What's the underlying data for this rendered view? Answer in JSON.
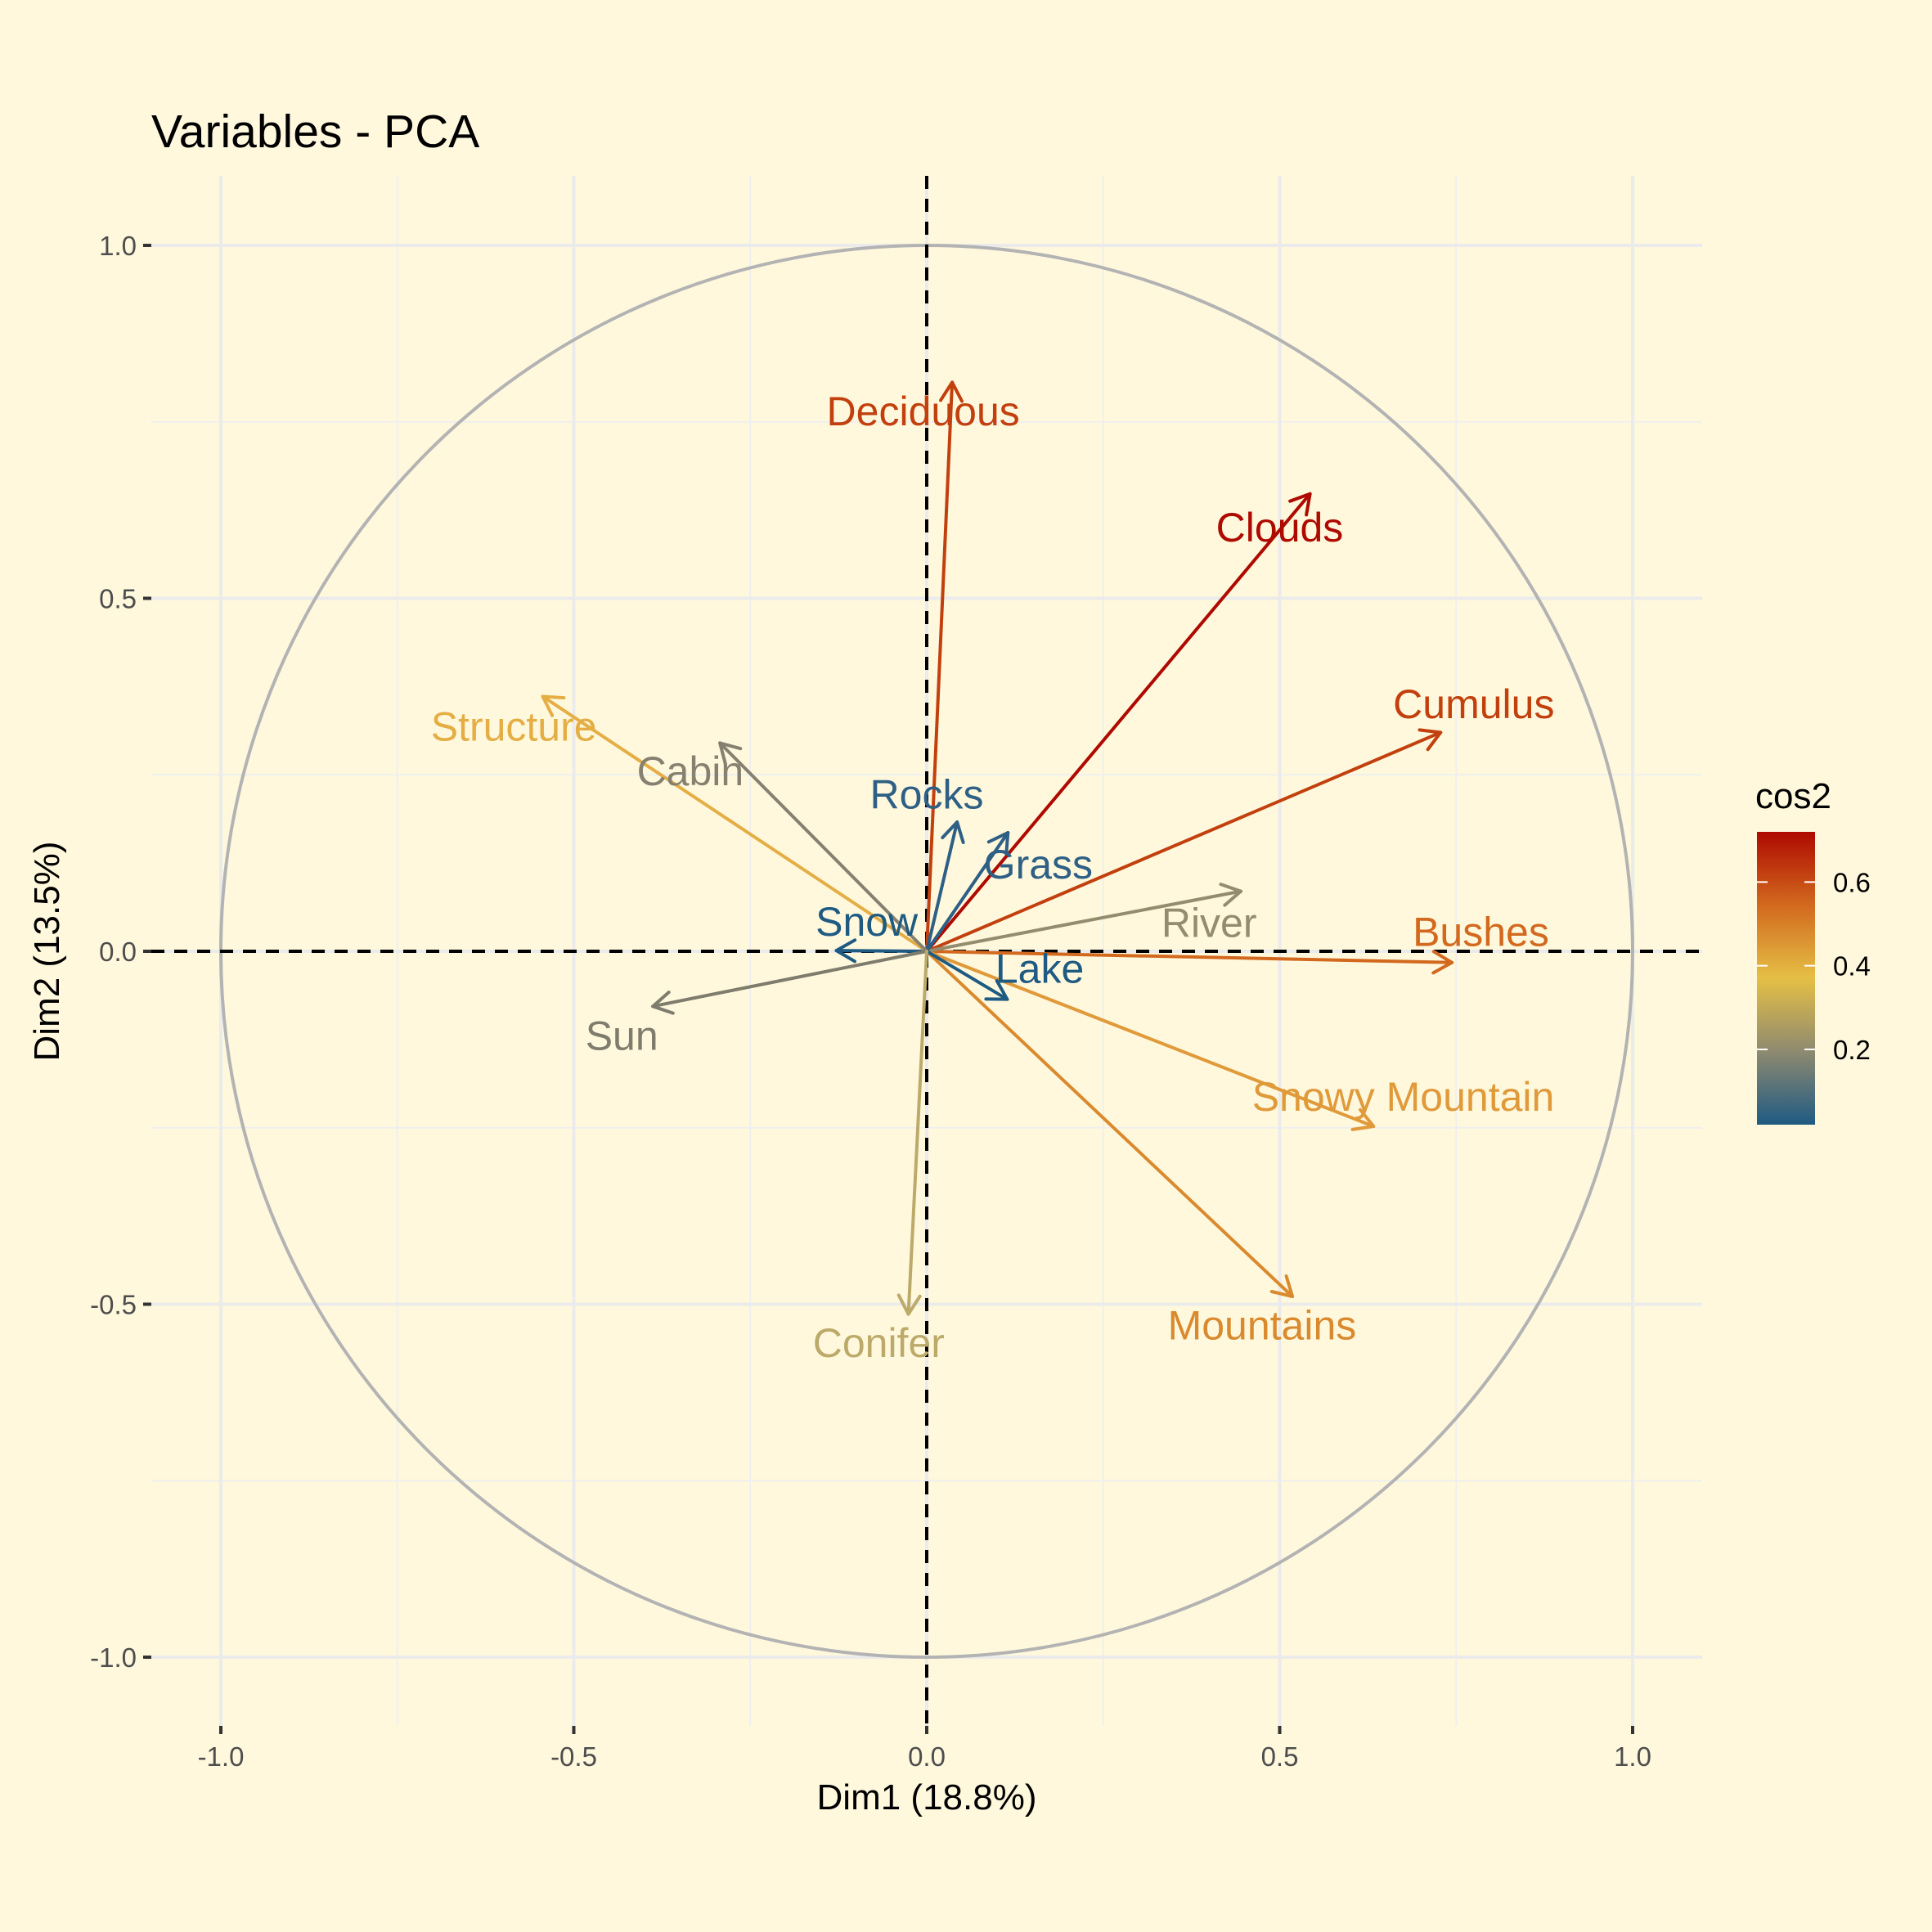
{
  "chart_data": {
    "type": "scatter",
    "subtype": "pca-variable-correlation-circle",
    "title": "Variables - PCA",
    "xlabel": "Dim1 (18.8%)",
    "ylabel": "Dim2 (13.5%)",
    "xlim": [
      -1.1,
      1.1
    ],
    "ylim": [
      -1.1,
      1.1
    ],
    "xticks": [
      -1.0,
      -0.5,
      0.0,
      0.5,
      1.0
    ],
    "xtick_labels": [
      "-1.0",
      "-0.5",
      "0.0",
      "0.5",
      "1.0"
    ],
    "yticks": [
      -1.0,
      -0.5,
      0.0,
      0.5,
      1.0
    ],
    "ytick_labels": [
      "-1.0",
      "-0.5",
      "0.0",
      "0.5",
      "1.0"
    ],
    "grid": true,
    "unit_circle": true,
    "reference_lines": "dashed at x=0 and y=0",
    "legend": {
      "title": "cos2",
      "placement": "right",
      "type": "gradient",
      "range": [
        0.02,
        0.72
      ],
      "ticks": [
        0.2,
        0.4,
        0.6
      ],
      "tick_labels": [
        "0.2",
        "0.4",
        "0.6"
      ],
      "colors": [
        "#1F5A82",
        "#8E8A70",
        "#E5BF45",
        "#D2691E",
        "#AE0A00"
      ]
    },
    "variables": [
      {
        "name": "Deciduous",
        "x": 0.036,
        "y": 0.806,
        "label_x": -0.005,
        "label_y": 0.765,
        "color": "#C2400E"
      },
      {
        "name": "Clouds",
        "x": 0.543,
        "y": 0.648,
        "label_x": 0.5,
        "label_y": 0.6,
        "color": "#AE0A00"
      },
      {
        "name": "Cumulus",
        "x": 0.728,
        "y": 0.31,
        "label_x": 0.775,
        "label_y": 0.35,
        "color": "#C2400E"
      },
      {
        "name": "Bushes",
        "x": 0.744,
        "y": -0.016,
        "label_x": 0.785,
        "label_y": 0.027,
        "color": "#D2691E"
      },
      {
        "name": "Snowy Mountain",
        "x": 0.633,
        "y": -0.248,
        "label_x": 0.675,
        "label_y": -0.206,
        "color": "#E09A3A"
      },
      {
        "name": "Mountains",
        "x": 0.518,
        "y": -0.489,
        "label_x": 0.475,
        "label_y": -0.53,
        "color": "#DA8A2E"
      },
      {
        "name": "River",
        "x": 0.445,
        "y": 0.085,
        "label_x": 0.4,
        "label_y": 0.04,
        "color": "#948C6E"
      },
      {
        "name": "Grass",
        "x": 0.115,
        "y": 0.168,
        "label_x": 0.158,
        "label_y": 0.123,
        "color": "#2E5F85"
      },
      {
        "name": "Rocks",
        "x": 0.043,
        "y": 0.183,
        "label_x": 0.0,
        "label_y": 0.222,
        "color": "#2E5F85"
      },
      {
        "name": "Lake",
        "x": 0.114,
        "y": -0.068,
        "label_x": 0.16,
        "label_y": -0.025,
        "color": "#1F5A82"
      },
      {
        "name": "Snow",
        "x": -0.128,
        "y": 0.001,
        "label_x": -0.085,
        "label_y": 0.042,
        "color": "#1F5A82"
      },
      {
        "name": "Structure",
        "x": -0.544,
        "y": 0.361,
        "label_x": -0.585,
        "label_y": 0.318,
        "color": "#E5AE45"
      },
      {
        "name": "Cabin",
        "x": -0.293,
        "y": 0.295,
        "label_x": -0.335,
        "label_y": 0.255,
        "color": "#858070"
      },
      {
        "name": "Sun",
        "x": -0.388,
        "y": -0.078,
        "label_x": -0.432,
        "label_y": -0.12,
        "color": "#7E7C6C"
      },
      {
        "name": "Conifer",
        "x": -0.026,
        "y": -0.514,
        "label_x": -0.068,
        "label_y": -0.555,
        "color": "#BCAA6A"
      }
    ]
  }
}
